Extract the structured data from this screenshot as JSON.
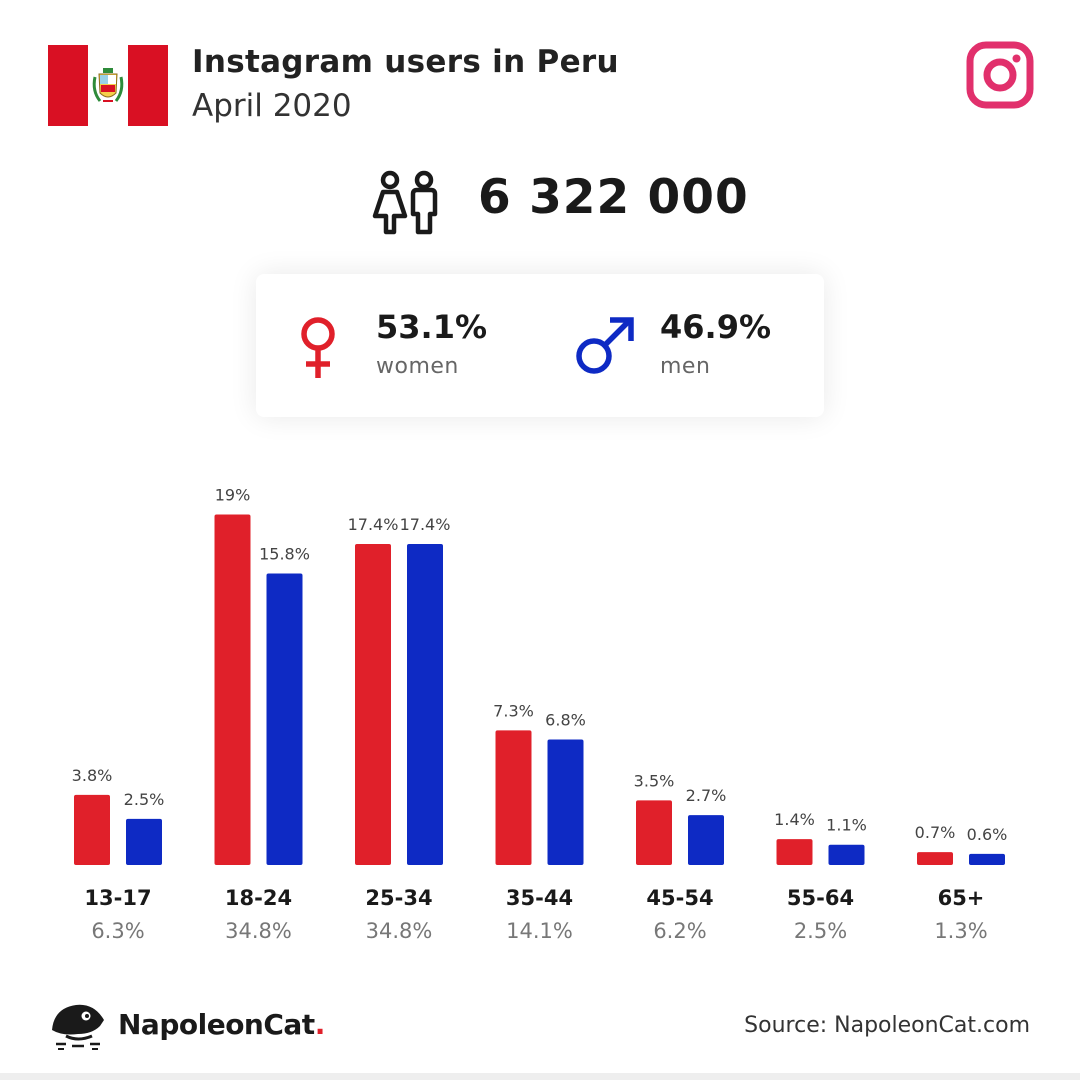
{
  "header": {
    "title": "Instagram users in Peru",
    "subtitle": "April 2020",
    "flag_icon": "peru-flag-icon",
    "platform_icon": "instagram-icon"
  },
  "total": {
    "icon": "users-icon",
    "value": "6 322 000"
  },
  "gender": {
    "women": {
      "pct": "53.1%",
      "label": "women",
      "icon": "venus-icon",
      "color": "#e0202a"
    },
    "men": {
      "pct": "46.9%",
      "label": "men",
      "icon": "mars-icon",
      "color": "#0e2ac4"
    }
  },
  "chart_data": {
    "type": "bar",
    "categories": [
      "13-17",
      "18-24",
      "25-34",
      "35-44",
      "45-54",
      "55-64",
      "65+"
    ],
    "totals": [
      "6.3%",
      "34.8%",
      "34.8%",
      "14.1%",
      "6.2%",
      "2.5%",
      "1.3%"
    ],
    "series": [
      {
        "name": "women",
        "color": "#e0202a",
        "values": [
          3.8,
          19,
          17.4,
          7.3,
          3.5,
          1.4,
          0.7
        ],
        "labels": [
          "3.8%",
          "19%",
          "17.4%",
          "7.3%",
          "3.5%",
          "1.4%",
          "0.7%"
        ]
      },
      {
        "name": "men",
        "color": "#0e2ac4",
        "values": [
          2.5,
          15.8,
          17.4,
          6.8,
          2.7,
          1.1,
          0.6
        ],
        "labels": [
          "2.5%",
          "15.8%",
          "17.4%",
          "6.8%",
          "2.7%",
          "1.1%",
          "0.6%"
        ]
      }
    ],
    "grid": false,
    "legend": "none"
  },
  "footer": {
    "brand_name": "NapoleonCat",
    "brand_dot": ".",
    "brand_icon": "napoleoncat-logo-icon",
    "source": "Source: NapoleonCat.com"
  }
}
